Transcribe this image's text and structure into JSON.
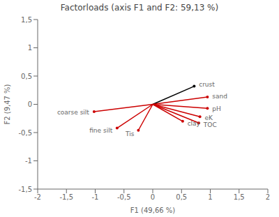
{
  "chart_data": {
    "type": "vector",
    "title": "Factorloads (axis F1 and F2: 59,13 %)",
    "xlabel": "F1 (49,66 %)",
    "ylabel": "F2 (9,47 %)",
    "labels": [
      "crust",
      "sand",
      "pH",
      "eK",
      "TOC",
      "clay",
      "Tis",
      "fine silt",
      "coarse silt"
    ],
    "x": [
      0.72,
      0.95,
      0.95,
      0.82,
      0.8,
      0.52,
      -0.25,
      -0.62,
      -1.02
    ],
    "values": [
      0.32,
      0.13,
      -0.07,
      -0.22,
      -0.33,
      -0.3,
      -0.46,
      -0.42,
      -0.13
    ],
    "colors": [
      "#000000",
      "#cc0000",
      "#cc0000",
      "#cc0000",
      "#cc0000",
      "#cc0000",
      "#cc0000",
      "#cc0000",
      "#cc0000"
    ],
    "xlim": [
      -2,
      2
    ],
    "ylim": [
      -1.5,
      1.5
    ],
    "xticks": [
      -2,
      {
        "value": -1.5,
        "label": "-1,5"
      },
      -1,
      {
        "value": -0.5,
        "label": "-0,5"
      },
      0,
      {
        "value": 0.5,
        "label": "0,5"
      },
      1,
      {
        "value": 1.5,
        "label": "1,5"
      },
      2
    ],
    "yticks": [
      {
        "value": -1.5,
        "label": "-1,5"
      },
      -1,
      {
        "value": -0.5,
        "label": "-0,5"
      },
      0,
      {
        "value": 0.5,
        "label": "0,5"
      },
      1,
      {
        "value": 1.5,
        "label": "1,5"
      }
    ],
    "grid": false
  }
}
